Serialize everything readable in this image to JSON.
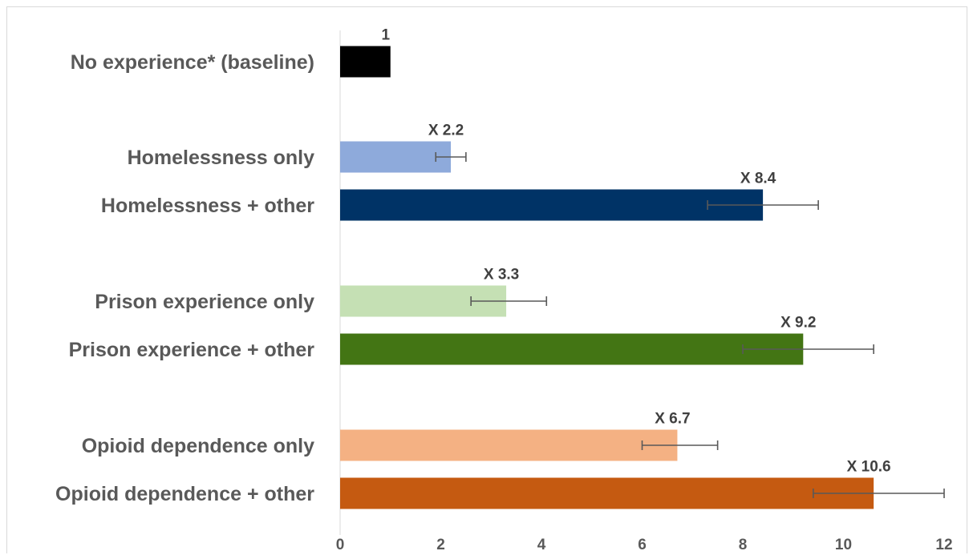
{
  "chart_data": {
    "type": "bar",
    "orientation": "horizontal",
    "categories": [
      "No experience* (baseline)",
      "Homelessness only",
      "Homelessness + other",
      "Prison experience only",
      "Prison experience + other",
      "Opioid dependence only",
      "Opioid dependence + other"
    ],
    "values": [
      1,
      2.2,
      8.4,
      3.3,
      9.2,
      6.7,
      10.6
    ],
    "data_labels": [
      "1",
      "X 2.2",
      "X 8.4",
      "X 3.3",
      "X 9.2",
      "X 6.7",
      "X 10.6"
    ],
    "error_low": [
      null,
      1.9,
      7.3,
      2.6,
      8.0,
      6.0,
      9.4
    ],
    "error_high": [
      null,
      2.5,
      9.5,
      4.1,
      10.6,
      7.5,
      12.0
    ],
    "colors": [
      "#000000",
      "#8eaadb",
      "#003366",
      "#c5e0b4",
      "#437514",
      "#f4b183",
      "#c55a11"
    ],
    "xlim": [
      0,
      12
    ],
    "xticks": [
      0,
      2,
      4,
      6,
      8,
      10,
      12
    ],
    "title": "",
    "xlabel": "",
    "ylabel": "",
    "grid": false,
    "legend": "none"
  }
}
